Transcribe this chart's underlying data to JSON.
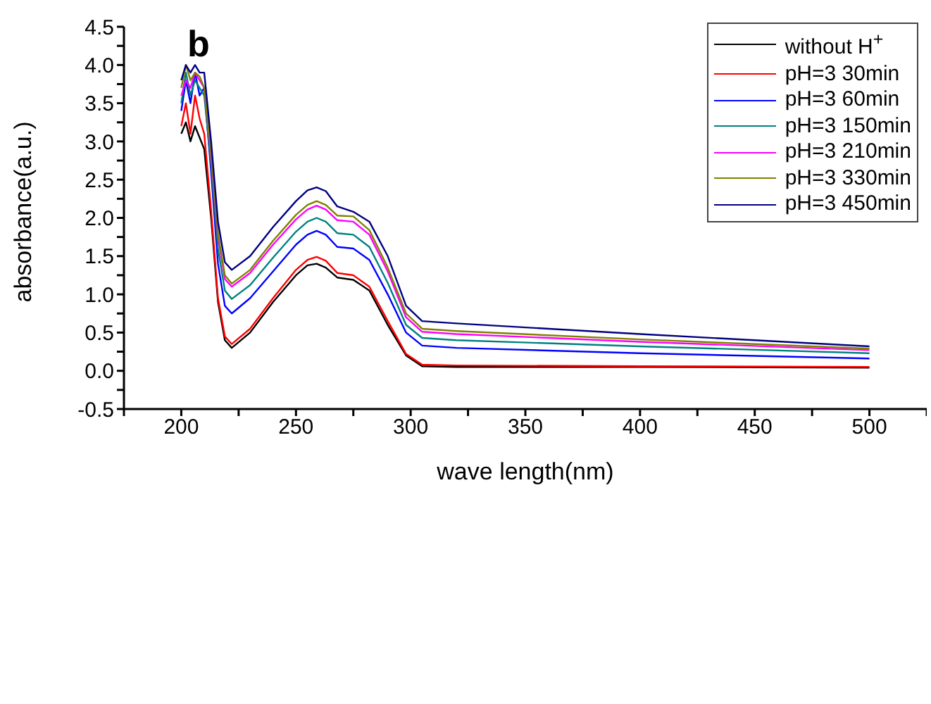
{
  "chart_data": {
    "type": "line",
    "annotations": [
      "b"
    ],
    "xlabel": "wave length(nm)",
    "ylabel": "absorbance(a.u.)",
    "x": [
      200,
      202,
      204,
      206,
      208,
      210,
      213,
      216,
      219,
      222,
      230,
      240,
      250,
      255,
      259,
      263,
      268,
      275,
      282,
      290,
      298,
      305,
      320,
      400,
      500
    ],
    "series": [
      {
        "name": "without H$^{+}$",
        "color": "#000000",
        "values": [
          3.1,
          3.25,
          3.0,
          3.2,
          3.05,
          2.9,
          2.0,
          0.9,
          0.4,
          0.3,
          0.5,
          0.9,
          1.25,
          1.38,
          1.4,
          1.35,
          1.22,
          1.19,
          1.05,
          0.6,
          0.2,
          0.06,
          0.05,
          0.05,
          0.04
        ]
      },
      {
        "name": "pH=3 30min",
        "color": "#ff0000",
        "values": [
          3.2,
          3.5,
          3.1,
          3.6,
          3.3,
          3.1,
          2.1,
          0.95,
          0.45,
          0.35,
          0.55,
          0.95,
          1.32,
          1.45,
          1.49,
          1.44,
          1.28,
          1.25,
          1.1,
          0.65,
          0.22,
          0.08,
          0.07,
          0.06,
          0.05
        ]
      },
      {
        "name": "pH=3 60min",
        "color": "#0000ff",
        "values": [
          3.4,
          3.8,
          3.5,
          3.9,
          3.6,
          3.7,
          2.6,
          1.4,
          0.85,
          0.75,
          0.95,
          1.3,
          1.65,
          1.78,
          1.83,
          1.78,
          1.62,
          1.6,
          1.45,
          1.0,
          0.5,
          0.33,
          0.3,
          0.23,
          0.16
        ]
      },
      {
        "name": "pH=3 150min",
        "color": "#008080",
        "values": [
          3.5,
          3.9,
          3.6,
          3.8,
          3.7,
          3.6,
          2.7,
          1.6,
          1.05,
          0.94,
          1.12,
          1.48,
          1.82,
          1.95,
          2.0,
          1.95,
          1.8,
          1.78,
          1.62,
          1.15,
          0.6,
          0.43,
          0.4,
          0.32,
          0.23
        ]
      },
      {
        "name": "pH=3 210min",
        "color": "#ff00ff",
        "values": [
          3.6,
          3.8,
          3.7,
          3.9,
          3.8,
          3.7,
          2.8,
          1.75,
          1.2,
          1.1,
          1.28,
          1.65,
          1.98,
          2.11,
          2.16,
          2.11,
          1.97,
          1.95,
          1.78,
          1.3,
          0.7,
          0.51,
          0.48,
          0.38,
          0.27
        ]
      },
      {
        "name": "pH=3 330min",
        "color": "#808000",
        "values": [
          3.7,
          4.0,
          3.8,
          3.9,
          3.85,
          3.7,
          2.85,
          1.8,
          1.25,
          1.14,
          1.32,
          1.7,
          2.04,
          2.17,
          2.22,
          2.17,
          2.03,
          2.02,
          1.84,
          1.35,
          0.75,
          0.55,
          0.52,
          0.41,
          0.29
        ]
      },
      {
        "name": "pH=3 450min",
        "color": "#000080",
        "values": [
          3.8,
          4.0,
          3.9,
          4.0,
          3.9,
          3.9,
          3.0,
          1.95,
          1.42,
          1.32,
          1.5,
          1.88,
          2.22,
          2.36,
          2.4,
          2.35,
          2.15,
          2.08,
          1.95,
          1.5,
          0.85,
          0.65,
          0.62,
          0.48,
          0.32
        ]
      }
    ],
    "xlim": [
      175,
      525
    ],
    "xticks": [
      {
        "value": 175,
        "label": null
      },
      200,
      {
        "value": 225,
        "label": null
      },
      250,
      {
        "value": 275,
        "label": null
      },
      300,
      {
        "value": 325,
        "label": null
      },
      350,
      {
        "value": 375,
        "label": null
      },
      400,
      {
        "value": 425,
        "label": null
      },
      450,
      {
        "value": 475,
        "label": null
      },
      500,
      {
        "value": 525,
        "label": null
      }
    ],
    "ylim": [
      -0.5,
      4.5
    ],
    "yticks": [
      -0.5,
      {
        "value": -0.25,
        "label": null
      },
      {
        "value": 0,
        "label": "0.0"
      },
      {
        "value": 0.25,
        "label": null
      },
      0.5,
      {
        "value": 0.75,
        "label": null
      },
      {
        "value": 1,
        "label": "1.0"
      },
      {
        "value": 1.25,
        "label": null
      },
      1.5,
      {
        "value": 1.75,
        "label": null
      },
      {
        "value": 2,
        "label": "2.0"
      },
      {
        "value": 2.25,
        "label": null
      },
      2.5,
      {
        "value": 2.75,
        "label": null
      },
      {
        "value": 3,
        "label": "3.0"
      },
      {
        "value": 3.25,
        "label": null
      },
      3.5,
      {
        "value": 3.75,
        "label": null
      },
      {
        "value": 4,
        "label": "4.0"
      },
      {
        "value": 4.25,
        "label": null
      },
      4.5
    ],
    "grid": false,
    "legend": "top right"
  }
}
